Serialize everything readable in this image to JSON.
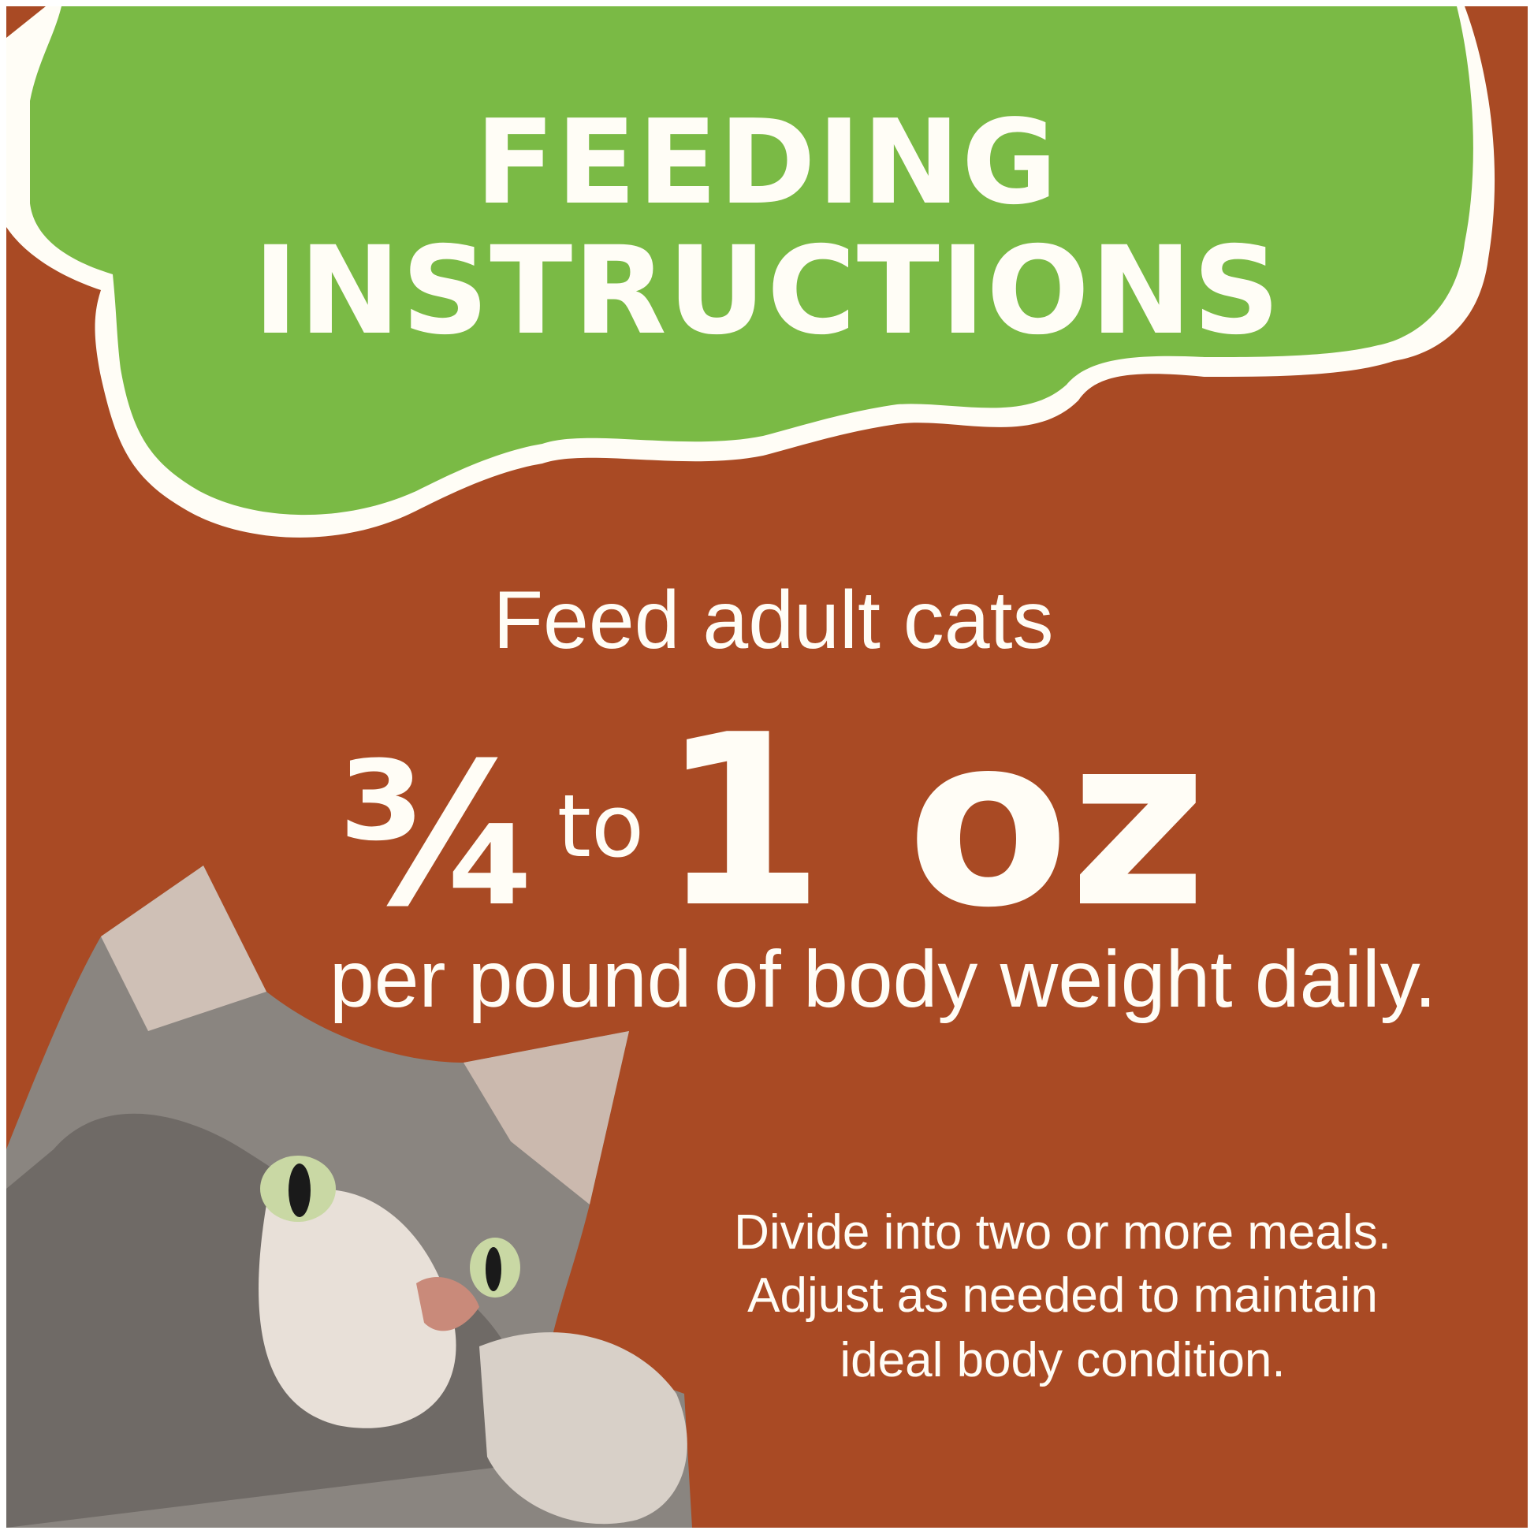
{
  "heading": {
    "line1": "FEEDING",
    "line2": "INSTRUCTIONS"
  },
  "intro": "Feed adult cats",
  "amount": {
    "fraction": "¾",
    "connector": "to",
    "max": "1 oz"
  },
  "basis": "per pound of body weight daily.",
  "note": {
    "line1": "Divide into two or more meals.",
    "line2": "Adjust as needed to maintain",
    "line3": "ideal body condition."
  },
  "colors": {
    "background": "#a94a24",
    "banner": "#7aba45",
    "text": "#fffdf6"
  }
}
